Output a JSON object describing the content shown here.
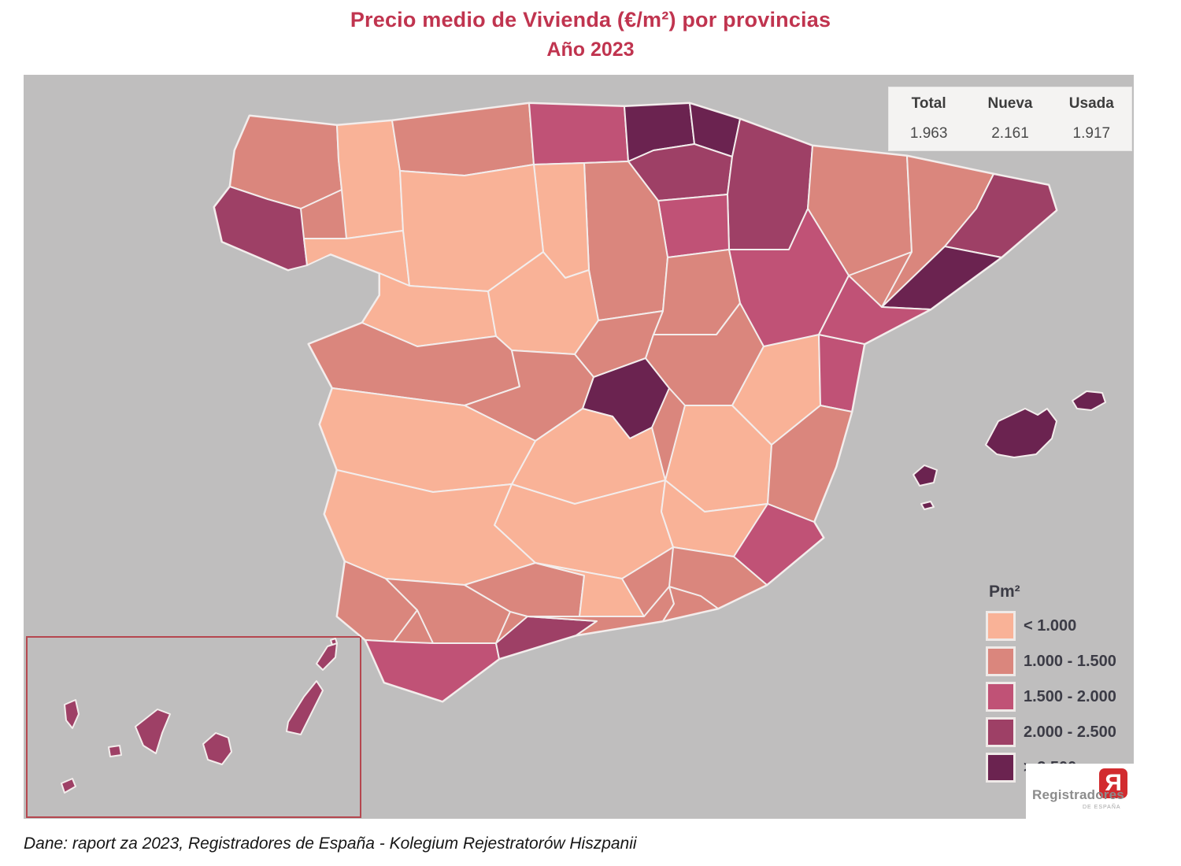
{
  "title": {
    "line1": "Precio medio de Vivienda (€/m²) por provincias",
    "line2": "Año 2023"
  },
  "stats": {
    "columns": [
      {
        "label": "Total",
        "value": "1.963"
      },
      {
        "label": "Nueva",
        "value": "2.161"
      },
      {
        "label": "Usada",
        "value": "1.917"
      }
    ]
  },
  "legend": {
    "title": "Pm²",
    "items": [
      {
        "key": "cat1",
        "label": "< 1.000",
        "color": "#F9B297"
      },
      {
        "key": "cat2",
        "label": "1.000 - 1.500",
        "color": "#DA867D"
      },
      {
        "key": "cat3",
        "label": "1.500 - 2.000",
        "color": "#C05276"
      },
      {
        "key": "cat4",
        "label": "2.000 - 2.500",
        "color": "#9E4066"
      },
      {
        "key": "cat5",
        "label": "> 2.500",
        "color": "#6B2350"
      }
    ]
  },
  "map": {
    "type": "choropleth_map",
    "unit": "€/m²",
    "background_color": "#BFBEBE",
    "border_color": "#F3EDEC",
    "inset_border_color": "#B5474F",
    "provinces": [
      {
        "name": "A Coruña",
        "category": "cat2"
      },
      {
        "name": "Lugo",
        "category": "cat1"
      },
      {
        "name": "Pontevedra",
        "category": "cat4"
      },
      {
        "name": "Ourense",
        "category": "cat1"
      },
      {
        "name": "Asturias",
        "category": "cat2"
      },
      {
        "name": "Cantabria",
        "category": "cat3"
      },
      {
        "name": "Vizcaya",
        "category": "cat5"
      },
      {
        "name": "Guipúzcoa",
        "category": "cat5"
      },
      {
        "name": "Álava",
        "category": "cat4"
      },
      {
        "name": "Navarra",
        "category": "cat4"
      },
      {
        "name": "La Rioja",
        "category": "cat3"
      },
      {
        "name": "Burgos",
        "category": "cat2"
      },
      {
        "name": "Palencia",
        "category": "cat1"
      },
      {
        "name": "León",
        "category": "cat1"
      },
      {
        "name": "Zamora",
        "category": "cat1"
      },
      {
        "name": "Valladolid",
        "category": "cat1"
      },
      {
        "name": "Soria",
        "category": "cat2"
      },
      {
        "name": "Segovia",
        "category": "cat2"
      },
      {
        "name": "Salamanca",
        "category": "cat2"
      },
      {
        "name": "Ávila",
        "category": "cat2"
      },
      {
        "name": "Madrid",
        "category": "cat5"
      },
      {
        "name": "Guadalajara",
        "category": "cat2"
      },
      {
        "name": "Cuenca",
        "category": "cat1"
      },
      {
        "name": "Toledo",
        "category": "cat1"
      },
      {
        "name": "Ciudad Real",
        "category": "cat1"
      },
      {
        "name": "Albacete",
        "category": "cat1"
      },
      {
        "name": "Teruel",
        "category": "cat1"
      },
      {
        "name": "Castellón",
        "category": "cat3"
      },
      {
        "name": "Valencia",
        "category": "cat2"
      },
      {
        "name": "Alicante",
        "category": "cat3"
      },
      {
        "name": "Murcia",
        "category": "cat2"
      },
      {
        "name": "Huesca",
        "category": "cat2"
      },
      {
        "name": "Zaragoza",
        "category": "cat3"
      },
      {
        "name": "Lleida",
        "category": "cat2"
      },
      {
        "name": "Girona",
        "category": "cat4"
      },
      {
        "name": "Barcelona",
        "category": "cat5"
      },
      {
        "name": "Tarragona",
        "category": "cat3"
      },
      {
        "name": "Cáceres",
        "category": "cat1"
      },
      {
        "name": "Badajoz",
        "category": "cat1"
      },
      {
        "name": "Huelva",
        "category": "cat2"
      },
      {
        "name": "Sevilla",
        "category": "cat2"
      },
      {
        "name": "Cádiz",
        "category": "cat3"
      },
      {
        "name": "Málaga",
        "category": "cat4"
      },
      {
        "name": "Córdoba",
        "category": "cat2"
      },
      {
        "name": "Jaén",
        "category": "cat1"
      },
      {
        "name": "Granada",
        "category": "cat2"
      },
      {
        "name": "Almería",
        "category": "cat2"
      },
      {
        "name": "Baleares",
        "category": "cat5"
      },
      {
        "name": "Santa Cruz de Tenerife",
        "category": "cat4"
      },
      {
        "name": "Las Palmas",
        "category": "cat4"
      }
    ]
  },
  "logo": {
    "name": "Registradores",
    "subtitle": "DE ESPAÑA",
    "mark": "R",
    "mark_color": "#D22B2F"
  },
  "caption": "Dane: raport za 2023, Registradores de España - Kolegium Rejestratorów Hiszpanii"
}
